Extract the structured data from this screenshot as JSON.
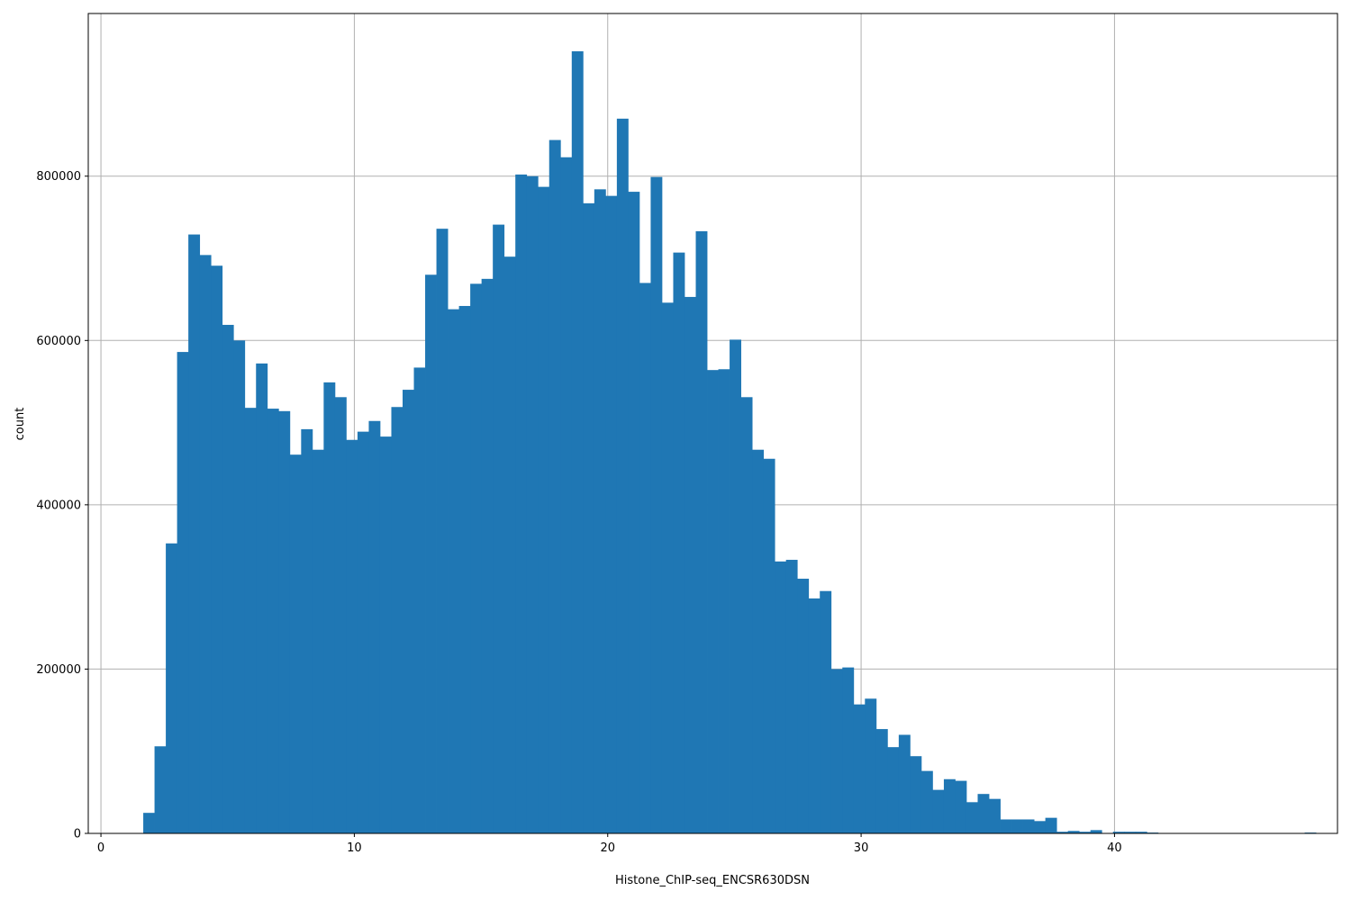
{
  "chart_data": {
    "type": "bar",
    "subtype": "histogram",
    "title": "",
    "xlabel": "Histone_ChIP-seq_ENCSR630DSN",
    "ylabel": "count",
    "xlim": [
      -0.5,
      48.8
    ],
    "ylim": [
      0,
      998000
    ],
    "xticks": [
      0,
      10,
      20,
      30,
      40
    ],
    "yticks": [
      0,
      200000,
      400000,
      600000,
      800000
    ],
    "xtick_labels": [
      "0",
      "10",
      "20",
      "30",
      "40"
    ],
    "ytick_labels": [
      "0",
      "200000",
      "400000",
      "600000",
      "800000"
    ],
    "grid": true,
    "legend": null,
    "bar_color": "#1f77b4",
    "bin_start": 1.67,
    "bin_width": 0.445,
    "values": [
      25000,
      106000,
      353000,
      586000,
      729000,
      704000,
      691000,
      619000,
      600000,
      518000,
      572000,
      517000,
      514000,
      461000,
      492000,
      467000,
      549000,
      531000,
      479000,
      489000,
      502000,
      483000,
      519000,
      540000,
      567000,
      680000,
      736000,
      638000,
      642000,
      669000,
      675000,
      741000,
      702000,
      802000,
      800000,
      787000,
      844000,
      823000,
      952000,
      767000,
      784000,
      776000,
      870000,
      781000,
      670000,
      799000,
      646000,
      707000,
      653000,
      733000,
      564000,
      565000,
      601000,
      531000,
      467000,
      456000,
      331000,
      333000,
      310000,
      286000,
      295000,
      200000,
      202000,
      157000,
      164000,
      127000,
      105000,
      120000,
      94000,
      76000,
      53000,
      66000,
      64000,
      38000,
      48000,
      42000,
      17000,
      17000,
      17000,
      15000,
      19000,
      2000,
      3000,
      2000,
      4000,
      0,
      2000,
      2000,
      2000,
      1000,
      0,
      0,
      0,
      0,
      0,
      0,
      0,
      0,
      0,
      0,
      0,
      0,
      0,
      1000,
      0
    ]
  }
}
